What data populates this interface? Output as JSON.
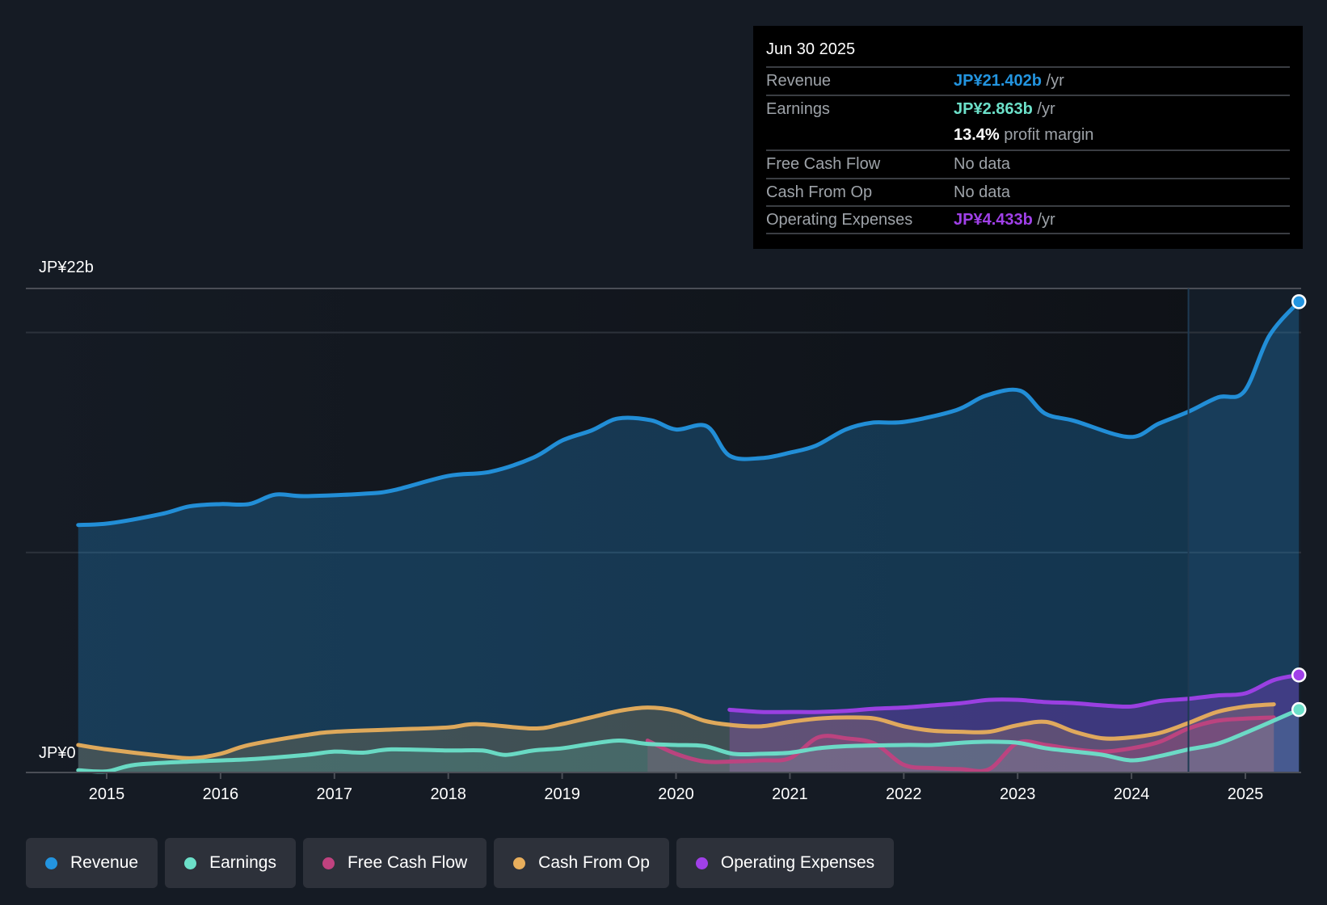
{
  "tooltip": {
    "date": "Jun 30 2025",
    "rows": [
      {
        "label": "Revenue",
        "value": "JP¥21.402b",
        "suffix": " /yr",
        "color": "#2394df"
      },
      {
        "label": "Earnings",
        "value": "JP¥2.863b",
        "suffix": " /yr",
        "color": "#6ce0c9"
      },
      {
        "label": "",
        "value": "13.4%",
        "suffix": " profit margin",
        "color": "#ffffff"
      },
      {
        "label": "Free Cash Flow",
        "value": "",
        "suffix": "No data",
        "color": "#6b6f75"
      },
      {
        "label": "Cash From Op",
        "value": "",
        "suffix": "No data",
        "color": "#6b6f75"
      },
      {
        "label": "Operating Expenses",
        "value": "JP¥4.433b",
        "suffix": " /yr",
        "color": "#a040e8"
      }
    ]
  },
  "legend": [
    {
      "label": "Revenue",
      "color": "#2394df"
    },
    {
      "label": "Earnings",
      "color": "#6ce0c9"
    },
    {
      "label": "Free Cash Flow",
      "color": "#c0427f"
    },
    {
      "label": "Cash From Op",
      "color": "#e8ae5c"
    },
    {
      "label": "Operating Expenses",
      "color": "#a040e8"
    }
  ],
  "chart_data": {
    "type": "area",
    "title": "",
    "xlabel": "",
    "ylabel": "",
    "y_top_label": "JP¥22b",
    "y_bottom_label": "JP¥0",
    "ylim": [
      0,
      22
    ],
    "y_gridlines": [
      10,
      20,
      22
    ],
    "xlim": [
      2014.75,
      2025.5
    ],
    "x_ticks": [
      2015,
      2016,
      2017,
      2018,
      2019,
      2020,
      2021,
      2022,
      2023,
      2024,
      2025
    ],
    "x_tick_labels": [
      "2015",
      "2016",
      "2017",
      "2018",
      "2019",
      "2020",
      "2021",
      "2022",
      "2023",
      "2024",
      "2025"
    ],
    "forecast_divider_x": 2024.5,
    "grid": true,
    "legend_position": "bottom",
    "series": [
      {
        "name": "Revenue",
        "color": "#2394df",
        "unit": "JP¥ billions",
        "points": [
          [
            2014.75,
            11.25
          ],
          [
            2015.03,
            11.33
          ],
          [
            2015.48,
            11.75
          ],
          [
            2015.73,
            12.1
          ],
          [
            2016.0,
            12.2
          ],
          [
            2016.25,
            12.2
          ],
          [
            2016.48,
            12.63
          ],
          [
            2016.74,
            12.56
          ],
          [
            2017.26,
            12.67
          ],
          [
            2017.52,
            12.83
          ],
          [
            2018.0,
            13.48
          ],
          [
            2018.37,
            13.67
          ],
          [
            2018.75,
            14.32
          ],
          [
            2019.0,
            15.09
          ],
          [
            2019.26,
            15.55
          ],
          [
            2019.49,
            16.09
          ],
          [
            2019.78,
            16.01
          ],
          [
            2020.0,
            15.59
          ],
          [
            2020.27,
            15.74
          ],
          [
            2020.47,
            14.4
          ],
          [
            2020.75,
            14.29
          ],
          [
            2021.01,
            14.55
          ],
          [
            2021.23,
            14.86
          ],
          [
            2021.49,
            15.59
          ],
          [
            2021.72,
            15.9
          ],
          [
            2022.01,
            15.94
          ],
          [
            2022.46,
            16.47
          ],
          [
            2022.72,
            17.13
          ],
          [
            2023.02,
            17.36
          ],
          [
            2023.24,
            16.32
          ],
          [
            2023.5,
            15.98
          ],
          [
            2023.98,
            15.25
          ],
          [
            2024.24,
            15.86
          ],
          [
            2024.5,
            16.4
          ],
          [
            2024.76,
            17.05
          ],
          [
            2024.99,
            17.32
          ],
          [
            2025.21,
            19.85
          ],
          [
            2025.47,
            21.4
          ]
        ]
      },
      {
        "name": "Earnings",
        "color": "#6ce0c9",
        "unit": "JP¥ billions",
        "points": [
          [
            2014.75,
            0.1
          ],
          [
            2015.0,
            0.05
          ],
          [
            2015.25,
            0.35
          ],
          [
            2015.75,
            0.5
          ],
          [
            2016.25,
            0.6
          ],
          [
            2016.75,
            0.8
          ],
          [
            2017.0,
            0.95
          ],
          [
            2017.25,
            0.9
          ],
          [
            2017.5,
            1.05
          ],
          [
            2018.0,
            1.0
          ],
          [
            2018.3,
            1.0
          ],
          [
            2018.5,
            0.8
          ],
          [
            2018.75,
            1.0
          ],
          [
            2019.0,
            1.1
          ],
          [
            2019.25,
            1.3
          ],
          [
            2019.5,
            1.45
          ],
          [
            2019.75,
            1.3
          ],
          [
            2020.0,
            1.25
          ],
          [
            2020.25,
            1.2
          ],
          [
            2020.5,
            0.85
          ],
          [
            2020.75,
            0.85
          ],
          [
            2021.0,
            0.9
          ],
          [
            2021.25,
            1.1
          ],
          [
            2021.5,
            1.2
          ],
          [
            2022.0,
            1.25
          ],
          [
            2022.25,
            1.25
          ],
          [
            2022.5,
            1.35
          ],
          [
            2022.75,
            1.4
          ],
          [
            2023.0,
            1.35
          ],
          [
            2023.25,
            1.1
          ],
          [
            2023.5,
            0.95
          ],
          [
            2023.75,
            0.8
          ],
          [
            2024.0,
            0.55
          ],
          [
            2024.25,
            0.75
          ],
          [
            2024.5,
            1.05
          ],
          [
            2024.75,
            1.3
          ],
          [
            2025.0,
            1.8
          ],
          [
            2025.47,
            2.86
          ]
        ]
      },
      {
        "name": "Free Cash Flow",
        "color": "#c0427f",
        "unit": "JP¥ billions",
        "points": [
          [
            2019.75,
            1.45
          ],
          [
            2020.0,
            0.85
          ],
          [
            2020.25,
            0.5
          ],
          [
            2020.5,
            0.5
          ],
          [
            2020.75,
            0.55
          ],
          [
            2021.0,
            0.65
          ],
          [
            2021.25,
            1.6
          ],
          [
            2021.5,
            1.55
          ],
          [
            2021.75,
            1.3
          ],
          [
            2022.0,
            0.35
          ],
          [
            2022.25,
            0.2
          ],
          [
            2022.5,
            0.15
          ],
          [
            2022.75,
            0.15
          ],
          [
            2023.0,
            1.35
          ],
          [
            2023.25,
            1.25
          ],
          [
            2023.5,
            1.05
          ],
          [
            2023.75,
            0.95
          ],
          [
            2024.0,
            1.1
          ],
          [
            2024.25,
            1.4
          ],
          [
            2024.5,
            2.0
          ],
          [
            2024.75,
            2.35
          ],
          [
            2025.0,
            2.45
          ],
          [
            2025.25,
            2.5
          ]
        ]
      },
      {
        "name": "Cash From Op",
        "color": "#e8ae5c",
        "unit": "JP¥ billions",
        "points": [
          [
            2014.75,
            1.25
          ],
          [
            2015.0,
            1.05
          ],
          [
            2015.5,
            0.75
          ],
          [
            2015.75,
            0.65
          ],
          [
            2016.0,
            0.85
          ],
          [
            2016.25,
            1.25
          ],
          [
            2016.75,
            1.7
          ],
          [
            2017.0,
            1.85
          ],
          [
            2017.5,
            1.95
          ],
          [
            2018.0,
            2.05
          ],
          [
            2018.25,
            2.2
          ],
          [
            2018.75,
            2.0
          ],
          [
            2019.0,
            2.2
          ],
          [
            2019.25,
            2.5
          ],
          [
            2019.5,
            2.8
          ],
          [
            2019.75,
            2.95
          ],
          [
            2020.0,
            2.8
          ],
          [
            2020.25,
            2.35
          ],
          [
            2020.5,
            2.15
          ],
          [
            2020.75,
            2.1
          ],
          [
            2021.0,
            2.3
          ],
          [
            2021.25,
            2.45
          ],
          [
            2021.5,
            2.5
          ],
          [
            2021.75,
            2.45
          ],
          [
            2022.0,
            2.1
          ],
          [
            2022.25,
            1.9
          ],
          [
            2022.5,
            1.85
          ],
          [
            2022.75,
            1.85
          ],
          [
            2023.0,
            2.15
          ],
          [
            2023.25,
            2.3
          ],
          [
            2023.5,
            1.85
          ],
          [
            2023.75,
            1.55
          ],
          [
            2024.0,
            1.6
          ],
          [
            2024.25,
            1.8
          ],
          [
            2024.5,
            2.25
          ],
          [
            2024.75,
            2.75
          ],
          [
            2025.0,
            3.0
          ],
          [
            2025.25,
            3.1
          ]
        ]
      },
      {
        "name": "Operating Expenses",
        "color": "#a040e8",
        "unit": "JP¥ billions",
        "points": [
          [
            2020.47,
            2.85
          ],
          [
            2020.75,
            2.75
          ],
          [
            2021.0,
            2.75
          ],
          [
            2021.25,
            2.75
          ],
          [
            2021.5,
            2.8
          ],
          [
            2021.75,
            2.9
          ],
          [
            2022.0,
            2.95
          ],
          [
            2022.25,
            3.05
          ],
          [
            2022.5,
            3.15
          ],
          [
            2022.75,
            3.3
          ],
          [
            2023.0,
            3.3
          ],
          [
            2023.25,
            3.2
          ],
          [
            2023.5,
            3.15
          ],
          [
            2023.75,
            3.05
          ],
          [
            2024.0,
            3.0
          ],
          [
            2024.25,
            3.25
          ],
          [
            2024.5,
            3.35
          ],
          [
            2024.75,
            3.5
          ],
          [
            2025.0,
            3.6
          ],
          [
            2025.25,
            4.2
          ],
          [
            2025.47,
            4.43
          ]
        ]
      }
    ],
    "end_markers": [
      {
        "series": "Revenue",
        "x": 2025.47,
        "y": 21.4
      },
      {
        "series": "Operating Expenses",
        "x": 2025.47,
        "y": 4.43
      },
      {
        "series": "Earnings",
        "x": 2025.47,
        "y": 2.86
      }
    ]
  }
}
